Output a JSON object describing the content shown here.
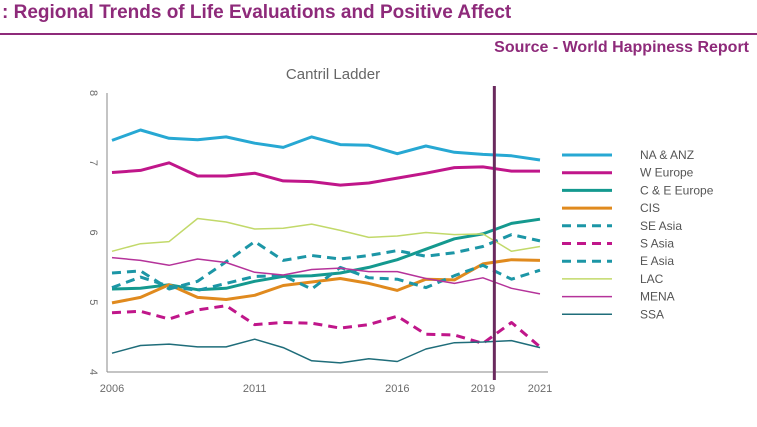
{
  "header": {
    "title": ": Regional Trends of Life Evaluations and Positive Affect",
    "source": "Source - World Happiness Report"
  },
  "colors": {
    "accent": "#8e2a7a",
    "marker_line": "#6a2a5e"
  },
  "chart_data": {
    "type": "line",
    "title": "Cantril Ladder",
    "xlabel": "",
    "ylabel": "",
    "xlim": [
      2006,
      2021
    ],
    "ylim": [
      4,
      8
    ],
    "x_ticks": [
      "2006",
      "2011",
      "2016",
      "2019",
      "2021"
    ],
    "y_ticks": [
      "4",
      "5",
      "6",
      "7",
      "8"
    ],
    "marker_year": 2019.4,
    "legend_position": "right",
    "x": [
      2006,
      2007,
      2008,
      2009,
      2010,
      2011,
      2012,
      2013,
      2014,
      2015,
      2016,
      2017,
      2018,
      2019,
      2020,
      2021
    ],
    "series": [
      {
        "name": "NA & ANZ",
        "color": "#27a8d3",
        "style": "solid",
        "width": 3,
        "values": [
          7.32,
          7.47,
          7.35,
          7.33,
          7.37,
          7.28,
          7.22,
          7.37,
          7.26,
          7.25,
          7.13,
          7.24,
          7.15,
          7.12,
          7.1,
          7.04
        ]
      },
      {
        "name": "W Europe",
        "color": "#c0168a",
        "style": "solid",
        "width": 3,
        "values": [
          6.86,
          6.89,
          7.0,
          6.81,
          6.81,
          6.85,
          6.74,
          6.73,
          6.68,
          6.71,
          6.78,
          6.85,
          6.93,
          6.94,
          6.88,
          6.88
        ]
      },
      {
        "name": "C & E Europe",
        "color": "#14998f",
        "style": "solid",
        "width": 3,
        "values": [
          5.19,
          5.2,
          5.25,
          5.18,
          5.2,
          5.3,
          5.37,
          5.38,
          5.42,
          5.5,
          5.61,
          5.76,
          5.91,
          5.98,
          6.13,
          6.19
        ]
      },
      {
        "name": "CIS",
        "color": "#e08a1e",
        "style": "solid",
        "width": 3,
        "values": [
          4.99,
          5.07,
          5.25,
          5.07,
          5.04,
          5.1,
          5.24,
          5.29,
          5.34,
          5.27,
          5.17,
          5.33,
          5.32,
          5.55,
          5.61,
          5.6
        ]
      },
      {
        "name": "SE Asia",
        "color": "#1c96a6",
        "style": "dashed",
        "width": 3,
        "values": [
          5.42,
          5.45,
          5.19,
          5.3,
          5.58,
          5.87,
          5.6,
          5.67,
          5.62,
          5.67,
          5.74,
          5.66,
          5.71,
          5.8,
          5.97,
          5.88
        ]
      },
      {
        "name": "S Asia",
        "color": "#c0168a",
        "style": "dashed",
        "width": 3,
        "values": [
          4.85,
          4.87,
          4.76,
          4.89,
          4.95,
          4.68,
          4.71,
          4.7,
          4.63,
          4.68,
          4.8,
          4.54,
          4.53,
          4.41,
          4.71,
          4.36
        ]
      },
      {
        "name": "E Asia",
        "color": "#1c96a6",
        "style": "dashed",
        "width": 3,
        "values": [
          5.21,
          5.36,
          5.23,
          5.17,
          5.27,
          5.37,
          5.38,
          5.19,
          5.5,
          5.35,
          5.33,
          5.21,
          5.38,
          5.53,
          5.33,
          5.46
        ]
      },
      {
        "name": "LAC",
        "color": "#c2d96a",
        "style": "solid",
        "width": 1.5,
        "values": [
          5.73,
          5.84,
          5.87,
          6.2,
          6.15,
          6.05,
          6.06,
          6.12,
          6.03,
          5.93,
          5.95,
          6.0,
          5.97,
          5.98,
          5.73,
          5.8
        ]
      },
      {
        "name": "MENA",
        "color": "#b5339a",
        "style": "solid",
        "width": 1.5,
        "values": [
          5.64,
          5.6,
          5.53,
          5.62,
          5.57,
          5.43,
          5.39,
          5.47,
          5.49,
          5.44,
          5.44,
          5.34,
          5.27,
          5.35,
          5.2,
          5.12
        ]
      },
      {
        "name": "SSA",
        "color": "#1f6d7a",
        "style": "solid",
        "width": 1.5,
        "values": [
          4.27,
          4.38,
          4.4,
          4.36,
          4.36,
          4.47,
          4.35,
          4.16,
          4.13,
          4.19,
          4.15,
          4.33,
          4.42,
          4.43,
          4.45,
          4.35
        ]
      }
    ]
  }
}
